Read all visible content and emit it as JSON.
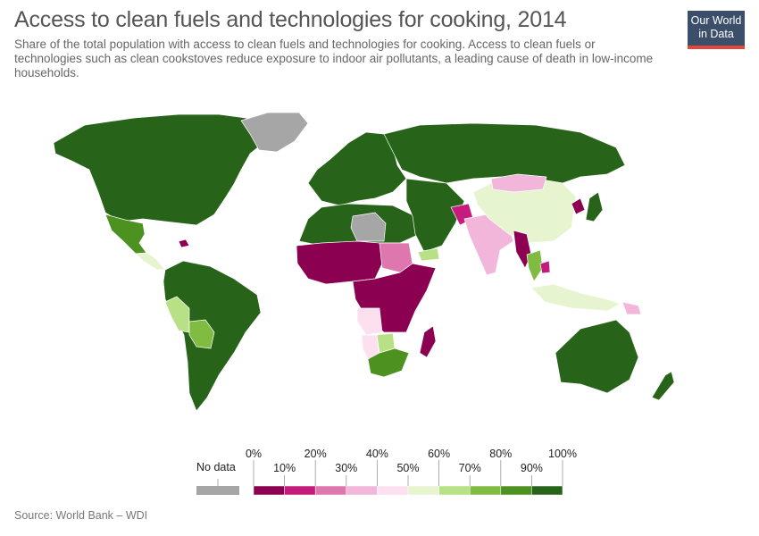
{
  "header": {
    "title": "Access to clean fuels and technologies for cooking, 2014",
    "subtitle": "Share of the total population with access to clean fuels and technologies for cooking. Access to clean fuels or technologies such as clean cookstoves reduce exposure to indoor air pollutants, a leading cause of death in low-income households."
  },
  "logo": {
    "line1": "Our World",
    "line2": "in Data"
  },
  "legend": {
    "no_data_label": "No data",
    "no_data_color": "#a6a6a6",
    "ticks_upper": [
      "0%",
      "20%",
      "40%",
      "60%",
      "80%",
      "100%"
    ],
    "ticks_lower": [
      "10%",
      "30%",
      "50%",
      "70%",
      "90%"
    ],
    "bins": [
      {
        "range": "0-10%",
        "color": "#8b0050"
      },
      {
        "range": "10-20%",
        "color": "#c51b7d"
      },
      {
        "range": "20-30%",
        "color": "#de77ae"
      },
      {
        "range": "30-40%",
        "color": "#f1b6da"
      },
      {
        "range": "40-50%",
        "color": "#fde0ef"
      },
      {
        "range": "50-60%",
        "color": "#e6f5d0"
      },
      {
        "range": "60-70%",
        "color": "#b8e186"
      },
      {
        "range": "70-80%",
        "color": "#7fbc41"
      },
      {
        "range": "80-90%",
        "color": "#4d9221"
      },
      {
        "range": "90-100%",
        "color": "#276419"
      }
    ]
  },
  "source": "Source: World Bank – WDI",
  "chart_data": {
    "type": "choropleth",
    "year": 2014,
    "unit": "%",
    "scale": [
      0,
      100
    ],
    "regions": [
      {
        "region": "North America",
        "bin": "90-100%"
      },
      {
        "region": "Mexico",
        "bin": "80-90%"
      },
      {
        "region": "Central America",
        "bin": "50-60%"
      },
      {
        "region": "Haiti",
        "bin": "0-10%"
      },
      {
        "region": "Greenland",
        "bin": "No data"
      },
      {
        "region": "South America",
        "bin": "90-100%"
      },
      {
        "region": "Peru",
        "bin": "60-70%"
      },
      {
        "region": "Bolivia",
        "bin": "70-80%"
      },
      {
        "region": "Europe",
        "bin": "90-100%"
      },
      {
        "region": "Russia",
        "bin": "90-100%"
      },
      {
        "region": "Libya",
        "bin": "No data"
      },
      {
        "region": "North Africa",
        "bin": "90-100%"
      },
      {
        "region": "Sahel and West Africa",
        "bin": "0-10%"
      },
      {
        "region": "Sudan",
        "bin": "20-30%"
      },
      {
        "region": "Central and East Africa",
        "bin": "0-10%"
      },
      {
        "region": "Angola",
        "bin": "40-50%"
      },
      {
        "region": "Namibia",
        "bin": "40-50%"
      },
      {
        "region": "Botswana",
        "bin": "60-70%"
      },
      {
        "region": "South Africa",
        "bin": "80-90%"
      },
      {
        "region": "Madagascar",
        "bin": "0-10%"
      },
      {
        "region": "Middle East",
        "bin": "90-100%"
      },
      {
        "region": "Yemen",
        "bin": "60-70%"
      },
      {
        "region": "Afghanistan",
        "bin": "10-20%"
      },
      {
        "region": "India",
        "bin": "30-40%"
      },
      {
        "region": "Myanmar",
        "bin": "0-10%"
      },
      {
        "region": "Thailand",
        "bin": "70-80%"
      },
      {
        "region": "Cambodia",
        "bin": "10-20%"
      },
      {
        "region": "Mongolia",
        "bin": "30-40%"
      },
      {
        "region": "China",
        "bin": "50-60%"
      },
      {
        "region": "North Korea",
        "bin": "0-10%"
      },
      {
        "region": "Indonesia",
        "bin": "50-60%"
      },
      {
        "region": "Papua New Guinea",
        "bin": "30-40%"
      },
      {
        "region": "Australia",
        "bin": "90-100%"
      },
      {
        "region": "New Zealand",
        "bin": "90-100%"
      }
    ]
  }
}
